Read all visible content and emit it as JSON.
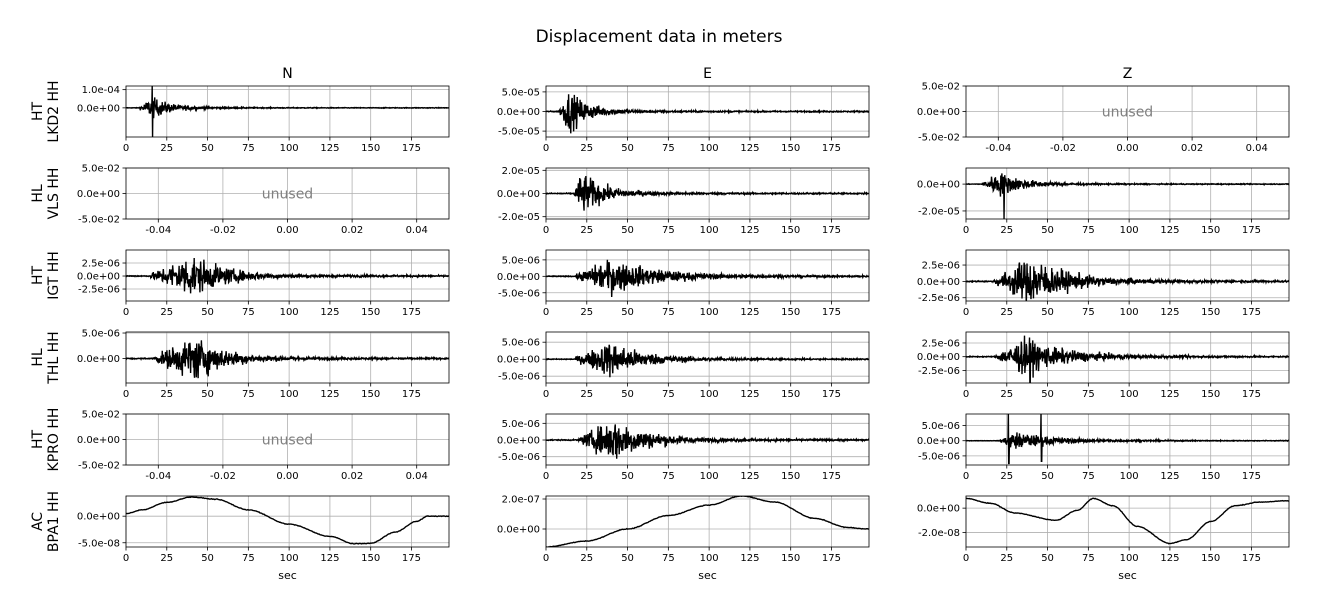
{
  "title": "Displacement data in meters",
  "columns": [
    "N",
    "E",
    "Z"
  ],
  "stations": [
    {
      "network": "HT",
      "code": "LKD2 HH"
    },
    {
      "network": "HL",
      "code": "VLS HH"
    },
    {
      "network": "HT",
      "code": "IGT HH"
    },
    {
      "network": "HL",
      "code": "THL HH"
    },
    {
      "network": "HT",
      "code": "KPRO HH"
    },
    {
      "network": "AC",
      "code": "BPA1 HH"
    }
  ],
  "unused_label": "unused",
  "xlabel": "sec",
  "chart_data": {
    "type": "line",
    "title": "Displacement data in meters",
    "xlabel": "sec",
    "grid": true,
    "time_ticks": [
      0,
      25,
      50,
      75,
      100,
      125,
      150,
      175
    ],
    "unused_ticks": [
      -0.04,
      -0.02,
      0.0,
      0.02,
      0.04
    ],
    "unused_yticks": [
      "5.0e-02",
      "0.0e+00",
      "-5.0e-02"
    ],
    "panels": [
      {
        "row": 0,
        "col": "N",
        "unused": false,
        "kind": "burst",
        "xlim": [
          0,
          198
        ],
        "ylim": [
          -0.00016,
          0.00012
        ],
        "yticks": [
          0.0001,
          0.0
        ],
        "ytick_labels": [
          "1.0e-04",
          "0.0e+00"
        ],
        "onset": 8,
        "peak_time": 16,
        "amplitude": 5e-05,
        "decay": 12,
        "spike": [
          16,
          0.00012,
          -0.00016
        ]
      },
      {
        "row": 0,
        "col": "E",
        "unused": false,
        "kind": "burst",
        "xlim": [
          0,
          198
        ],
        "ylim": [
          -6.5e-05,
          6.5e-05
        ],
        "yticks": [
          5e-05,
          0.0,
          -5e-05
        ],
        "ytick_labels": [
          "5.0e-05",
          "0.0e+00",
          "-5.0e-05"
        ],
        "onset": 8,
        "peak_time": 14,
        "amplitude": 4.5e-05,
        "decay": 12
      },
      {
        "row": 0,
        "col": "Z",
        "unused": true
      },
      {
        "row": 1,
        "col": "N",
        "unused": true
      },
      {
        "row": 1,
        "col": "E",
        "unused": false,
        "kind": "burst",
        "xlim": [
          0,
          198
        ],
        "ylim": [
          -2.2e-05,
          2.2e-05
        ],
        "yticks": [
          2e-05,
          0.0,
          -2e-05
        ],
        "ytick_labels": [
          "2.0e-05",
          "0.0e+00",
          "-2.0e-05"
        ],
        "onset": 17,
        "peak_time": 22,
        "amplitude": 1.6e-05,
        "decay": 13
      },
      {
        "row": 1,
        "col": "Z",
        "unused": false,
        "kind": "burst",
        "xlim": [
          0,
          198
        ],
        "ylim": [
          -2.6e-05,
          1.2e-05
        ],
        "yticks": [
          0.0,
          -2e-05
        ],
        "ytick_labels": [
          "0.0e+00",
          "-2.0e-05"
        ],
        "onset": 10,
        "peak_time": 20,
        "amplitude": 8e-06,
        "decay": 15,
        "spike": [
          23,
          5e-06,
          -2.6e-05
        ]
      },
      {
        "row": 2,
        "col": "N",
        "unused": false,
        "kind": "burst",
        "xlim": [
          0,
          198
        ],
        "ylim": [
          -4.8e-06,
          5e-06
        ],
        "yticks": [
          2.5e-06,
          0.0,
          -2.5e-06
        ],
        "ytick_labels": [
          "2.5e-06",
          "0.0e+00",
          "-2.5e-06"
        ],
        "onset": 15,
        "peak_time": 40,
        "amplitude": 3.5e-06,
        "decay": 20
      },
      {
        "row": 2,
        "col": "E",
        "unused": false,
        "kind": "burst",
        "xlim": [
          0,
          198
        ],
        "ylim": [
          -7.5e-06,
          8e-06
        ],
        "yticks": [
          5e-06,
          0.0,
          -5e-06
        ],
        "ytick_labels": [
          "5.0e-06",
          "0.0e+00",
          "-5.0e-06"
        ],
        "onset": 18,
        "peak_time": 40,
        "amplitude": 4.5e-06,
        "decay": 28
      },
      {
        "row": 2,
        "col": "Z",
        "unused": false,
        "kind": "burst",
        "xlim": [
          0,
          198
        ],
        "ylim": [
          -3e-06,
          4.8e-06
        ],
        "yticks": [
          2.5e-06,
          0.0,
          -2.5e-06
        ],
        "ytick_labels": [
          "2.5e-06",
          "0.0e+00",
          "-2.5e-06"
        ],
        "onset": 17,
        "peak_time": 40,
        "amplitude": 3.2e-06,
        "decay": 22
      },
      {
        "row": 3,
        "col": "N",
        "unused": false,
        "kind": "burst",
        "xlim": [
          0,
          198
        ],
        "ylim": [
          -4.8e-06,
          5.2e-06
        ],
        "yticks": [
          5e-06,
          0.0
        ],
        "ytick_labels": [
          "5.0e-06",
          "0.0e+00"
        ],
        "onset": 17,
        "peak_time": 42,
        "amplitude": 3.8e-06,
        "decay": 18
      },
      {
        "row": 3,
        "col": "E",
        "unused": false,
        "kind": "burst",
        "xlim": [
          0,
          198
        ],
        "ylim": [
          -7e-06,
          8e-06
        ],
        "yticks": [
          5e-06,
          0.0,
          -5e-06
        ],
        "ytick_labels": [
          "5.0e-06",
          "0.0e+00",
          "-5.0e-06"
        ],
        "onset": 18,
        "peak_time": 40,
        "amplitude": 4.5e-06,
        "decay": 20
      },
      {
        "row": 3,
        "col": "Z",
        "unused": false,
        "kind": "burst",
        "xlim": [
          0,
          198
        ],
        "ylim": [
          -4.8e-06,
          4.5e-06
        ],
        "yticks": [
          2.5e-06,
          0.0,
          -2.5e-06
        ],
        "ytick_labels": [
          "2.5e-06",
          "0.0e+00",
          "-2.5e-06"
        ],
        "onset": 18,
        "peak_time": 35,
        "amplitude": 2.8e-06,
        "decay": 25,
        "spike": [
          39,
          3.5e-06,
          -4.8e-06
        ]
      },
      {
        "row": 4,
        "col": "N",
        "unused": true
      },
      {
        "row": 4,
        "col": "E",
        "unused": false,
        "kind": "burst",
        "xlim": [
          0,
          198
        ],
        "ylim": [
          -7.5e-06,
          7.8e-06
        ],
        "yticks": [
          5e-06,
          0.0,
          -5e-06
        ],
        "ytick_labels": [
          "5.0e-06",
          "0.0e+00",
          "-5.0e-06"
        ],
        "onset": 20,
        "peak_time": 42,
        "amplitude": 5.5e-06,
        "decay": 20
      },
      {
        "row": 4,
        "col": "Z",
        "unused": false,
        "kind": "burst",
        "xlim": [
          0,
          198
        ],
        "ylim": [
          -8e-06,
          8.8e-06
        ],
        "yticks": [
          5e-06,
          0.0,
          -5e-06
        ],
        "ytick_labels": [
          "5.0e-06",
          "0.0e+00",
          "-5.0e-06"
        ],
        "onset": 20,
        "peak_time": 30,
        "amplitude": 2.5e-06,
        "decay": 25,
        "spike": [
          26,
          8.8e-06,
          -7.5e-06
        ],
        "spike2": [
          46,
          8.8e-06,
          -6.8e-06
        ]
      },
      {
        "row": 5,
        "col": "N",
        "unused": false,
        "kind": "smooth",
        "xlim": [
          0,
          198
        ],
        "ylim": [
          -5.8e-08,
          3.8e-08
        ],
        "yticks": [
          0.0,
          -5e-08
        ],
        "ytick_labels": [
          "0.0e+00",
          "-5.0e-08"
        ],
        "curve": [
          [
            0,
            5e-09
          ],
          [
            10,
            1.2e-08
          ],
          [
            25,
            2.6e-08
          ],
          [
            40,
            3.6e-08
          ],
          [
            55,
            3.2e-08
          ],
          [
            75,
            1.2e-08
          ],
          [
            100,
            -1.5e-08
          ],
          [
            125,
            -3.8e-08
          ],
          [
            140,
            -5.2e-08
          ],
          [
            150,
            -5.1e-08
          ],
          [
            165,
            -3e-08
          ],
          [
            178,
            -1e-08
          ],
          [
            185,
            0.0
          ],
          [
            197,
            0.0
          ]
        ]
      },
      {
        "row": 5,
        "col": "E",
        "unused": false,
        "kind": "smooth",
        "xlim": [
          0,
          198
        ],
        "ylim": [
          -1.2e-07,
          2.2e-07
        ],
        "yticks": [
          2e-07,
          0.0
        ],
        "ytick_labels": [
          "2.0e-07",
          "0.0e+00"
        ],
        "curve": [
          [
            0,
            -1.2e-07
          ],
          [
            25,
            -8e-08
          ],
          [
            50,
            0.0
          ],
          [
            75,
            9e-08
          ],
          [
            100,
            1.6e-07
          ],
          [
            120,
            2.2e-07
          ],
          [
            140,
            1.8e-07
          ],
          [
            165,
            7e-08
          ],
          [
            185,
            1e-08
          ],
          [
            197,
            0.0
          ]
        ]
      },
      {
        "row": 5,
        "col": "Z",
        "unused": false,
        "kind": "smooth",
        "xlim": [
          0,
          198
        ],
        "ylim": [
          -3.2e-08,
          1e-08
        ],
        "yticks": [
          0.0,
          -2e-08
        ],
        "ytick_labels": [
          "0.0e+00",
          "-2.0e-08"
        ],
        "curve": [
          [
            0,
            8e-09
          ],
          [
            15,
            4e-09
          ],
          [
            30,
            -4e-09
          ],
          [
            55,
            -1e-08
          ],
          [
            68,
            -2e-09
          ],
          [
            78,
            8e-09
          ],
          [
            90,
            2e-09
          ],
          [
            105,
            -1.5e-08
          ],
          [
            125,
            -2.9e-08
          ],
          [
            135,
            -2.6e-08
          ],
          [
            150,
            -1.1e-08
          ],
          [
            165,
            2e-09
          ],
          [
            180,
            5e-09
          ],
          [
            197,
            6e-09
          ]
        ]
      }
    ]
  }
}
